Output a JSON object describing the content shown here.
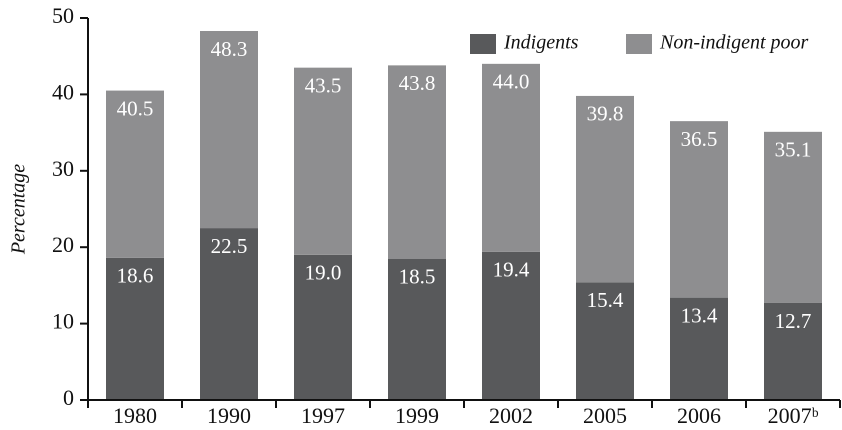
{
  "chart_data": {
    "type": "stacked-bar",
    "y_label": "Percentage",
    "categories": [
      "1980",
      "1990",
      "1997",
      "1999",
      "2002",
      "2005",
      "2006",
      "2007ᵇ"
    ],
    "series": [
      {
        "name": "Indigents",
        "color": "#58595b",
        "values": [
          18.6,
          22.5,
          19.0,
          18.5,
          19.4,
          15.4,
          13.4,
          12.7
        ]
      },
      {
        "name": "Non-indigent poor",
        "color": "#8e8e90",
        "values": [
          21.9,
          25.8,
          24.5,
          25.3,
          24.6,
          24.4,
          23.1,
          22.4
        ]
      }
    ],
    "value_labels": [
      [
        "18.6",
        "22.5",
        "19.0",
        "18.5",
        "19.4",
        "15.4",
        "13.4",
        "12.7"
      ]
    ],
    "totals": [
      "40.5",
      "48.3",
      "43.5",
      "43.8",
      "44.0",
      "39.8",
      "36.5",
      "35.1"
    ],
    "ylim": [
      0,
      50
    ],
    "yticks": [
      0,
      10,
      20,
      30,
      40,
      50
    ],
    "legend": "top-right"
  }
}
